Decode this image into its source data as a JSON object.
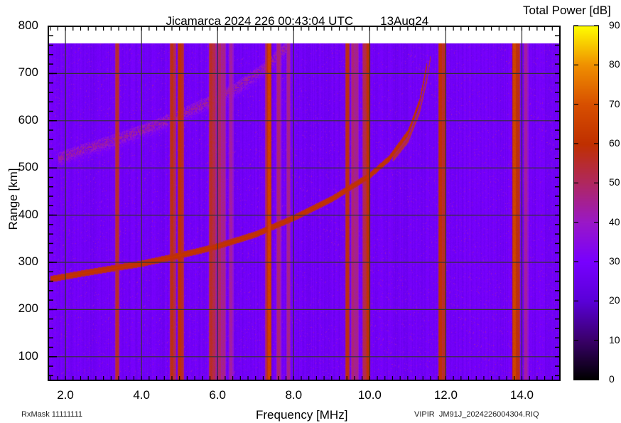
{
  "header": {
    "title": "Jicamarca 2024 226 00:43:04 UTC",
    "date": "13Aug24",
    "colorbar_title": "Total Power [dB]"
  },
  "footer": {
    "rxmask": "RxMask 11111111",
    "file": "VIPIR  JM91J_2024226004304.RIQ"
  },
  "chart_data": {
    "type": "heatmap",
    "title": "Jicamarca 2024 226 00:43:04 UTC  13Aug24",
    "xlabel": "Frequency [MHz]",
    "ylabel": "Range [km]",
    "xlim": [
      1.55,
      15.0
    ],
    "ylim": [
      50,
      800
    ],
    "x_ticks": [
      "2.0",
      "4.0",
      "6.0",
      "8.0",
      "10.0",
      "12.0",
      "14.0"
    ],
    "y_ticks": [
      "100",
      "200",
      "300",
      "400",
      "500",
      "600",
      "700",
      "800"
    ],
    "grid": true,
    "data_top_km": 765,
    "colorbar": {
      "label": "Total Power [dB]",
      "range": [
        0,
        90
      ],
      "ticks": [
        "0",
        "10",
        "20",
        "30",
        "40",
        "50",
        "60",
        "70",
        "80",
        "90"
      ],
      "colormap": [
        "#000000",
        "#3a006a",
        "#5a00d8",
        "#7800ff",
        "#9a18c8",
        "#b02860",
        "#c03000",
        "#d85000",
        "#f09000",
        "#ffff00"
      ]
    },
    "background_level_db": 28,
    "traces": [
      {
        "name": "F-layer O-trace (strong)",
        "points": [
          [
            1.6,
            265
          ],
          [
            2.5,
            278
          ],
          [
            4.0,
            298
          ],
          [
            5.0,
            315
          ],
          [
            6.0,
            335
          ],
          [
            7.0,
            360
          ],
          [
            8.0,
            395
          ],
          [
            9.0,
            435
          ],
          [
            10.0,
            485
          ],
          [
            10.5,
            520
          ],
          [
            11.0,
            575
          ],
          [
            11.3,
            640
          ],
          [
            11.5,
            720
          ]
        ],
        "level_db": 62
      },
      {
        "name": "F-layer X-trace",
        "points": [
          [
            10.6,
            520
          ],
          [
            11.0,
            560
          ],
          [
            11.3,
            620
          ],
          [
            11.5,
            690
          ],
          [
            11.6,
            740
          ]
        ],
        "level_db": 55
      },
      {
        "name": "Multi-hop echo (2F)",
        "points": [
          [
            1.8,
            530
          ],
          [
            2.5,
            550
          ],
          [
            3.5,
            575
          ],
          [
            4.5,
            605
          ],
          [
            5.5,
            640
          ],
          [
            6.5,
            680
          ],
          [
            7.2,
            720
          ],
          [
            7.8,
            765
          ]
        ],
        "level_db": 45
      }
    ],
    "interference_lines_mhz": [
      {
        "f": 3.35,
        "db": 55
      },
      {
        "f": 4.8,
        "db": 58
      },
      {
        "f": 4.85,
        "db": 52
      },
      {
        "f": 5.0,
        "db": 60
      },
      {
        "f": 5.05,
        "db": 56
      },
      {
        "f": 5.82,
        "db": 56
      },
      {
        "f": 5.9,
        "db": 52
      },
      {
        "f": 6.05,
        "db": 50
      },
      {
        "f": 6.15,
        "db": 46
      },
      {
        "f": 6.35,
        "db": 44
      },
      {
        "f": 7.3,
        "db": 52
      },
      {
        "f": 7.35,
        "db": 66
      },
      {
        "f": 7.6,
        "db": 48
      },
      {
        "f": 7.85,
        "db": 46
      },
      {
        "f": 9.4,
        "db": 58
      },
      {
        "f": 9.55,
        "db": 48
      },
      {
        "f": 9.65,
        "db": 46
      },
      {
        "f": 9.85,
        "db": 52
      },
      {
        "f": 9.95,
        "db": 60
      },
      {
        "f": 11.85,
        "db": 60
      },
      {
        "f": 11.95,
        "db": 56
      },
      {
        "f": 13.8,
        "db": 66
      },
      {
        "f": 13.88,
        "db": 58
      },
      {
        "f": 14.1,
        "db": 44
      }
    ]
  }
}
